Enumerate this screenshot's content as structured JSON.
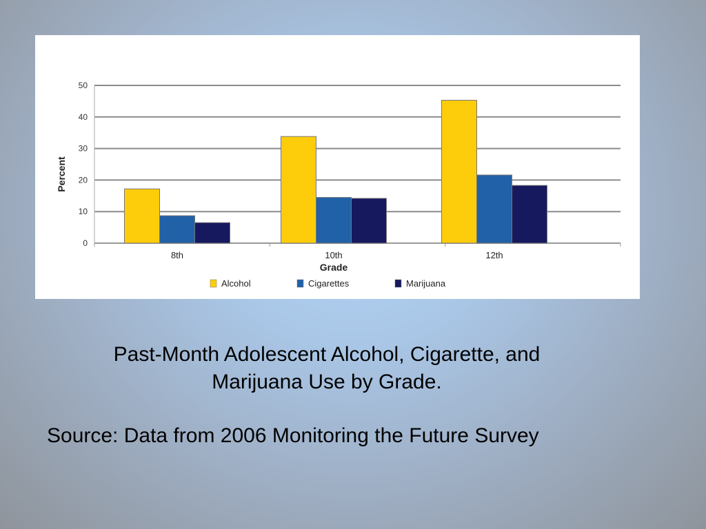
{
  "chart_data": {
    "type": "bar",
    "title": "",
    "xlabel": "Grade",
    "ylabel": "Percent",
    "ylim": [
      0,
      50
    ],
    "yticks": [
      0,
      10,
      20,
      30,
      40,
      50
    ],
    "categories": [
      "8th",
      "10th",
      "12th"
    ],
    "series": [
      {
        "name": "Alcohol",
        "color": "#fdcd0c",
        "values": [
          17.2,
          33.8,
          45.3
        ]
      },
      {
        "name": "Cigarettes",
        "color": "#2161a8",
        "values": [
          8.7,
          14.5,
          21.6
        ]
      },
      {
        "name": "Marijuana",
        "color": "#17195e",
        "values": [
          6.5,
          14.2,
          18.3
        ]
      }
    ],
    "grid": true,
    "legend": "bottom"
  },
  "caption": {
    "line1": "Past-Month Adolescent Alcohol, Cigarette, and",
    "line2": "Marijuana Use by Grade."
  },
  "source": "Source: Data from 2006 Monitoring the Future Survey"
}
